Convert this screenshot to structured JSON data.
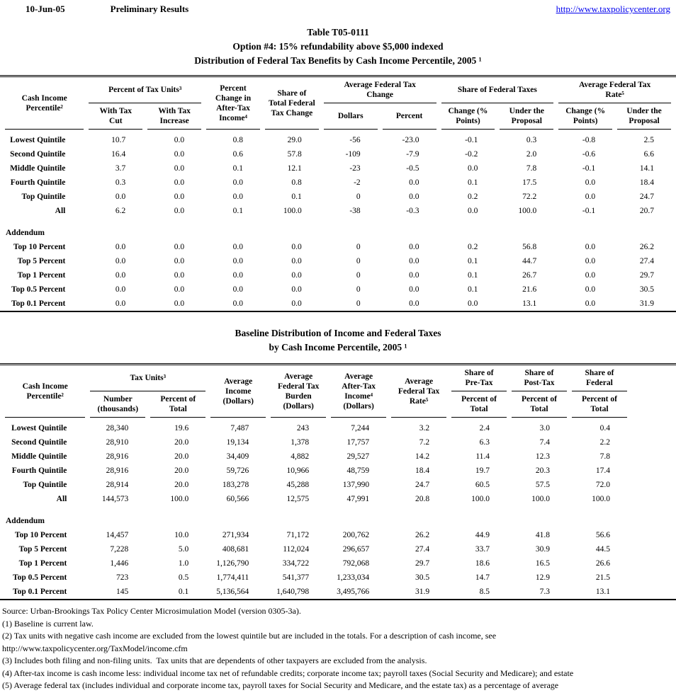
{
  "page_header": {
    "date": "10-Jun-05",
    "status": "Preliminary Results",
    "link": "http://www.taxpolicycenter.org",
    "link_color": "#0000EE"
  },
  "table1": {
    "title": [
      "Table T05-0111",
      "Option #4: 15% refundability above $5,000 indexed",
      "Distribution of Federal Tax Benefits by Cash Income Percentile, 2005 ¹"
    ],
    "headers": {
      "stub": "Cash Income\nPercentile²",
      "group_tax_units": "Percent of Tax Units³",
      "pct_change": "Percent\nChange in\nAfter-Tax\nIncome⁴",
      "share_total": "Share of\nTotal Federal\nTax Change",
      "group_avg_change": "Average Federal Tax\nChange",
      "group_share_taxes": "Share of Federal Taxes",
      "group_avg_rate": "Average Federal Tax\nRate⁵",
      "sub": [
        "With Tax\nCut",
        "With Tax\nIncrease",
        "Dollars",
        "Percent",
        "Change (%\nPoints)",
        "Under the\nProposal",
        "Change (%\nPoints)",
        "Under the\nProposal"
      ]
    },
    "rows": [
      {
        "label": "Lowest Quintile",
        "values": [
          "10.7",
          "0.0",
          "0.8",
          "29.0",
          "-56",
          "-23.0",
          "-0.1",
          "0.3",
          "-0.8",
          "2.5"
        ]
      },
      {
        "label": "Second Quintile",
        "values": [
          "16.4",
          "0.0",
          "0.6",
          "57.8",
          "-109",
          "-7.9",
          "-0.2",
          "2.0",
          "-0.6",
          "6.6"
        ]
      },
      {
        "label": "Middle Quintile",
        "values": [
          "3.7",
          "0.0",
          "0.1",
          "12.1",
          "-23",
          "-0.5",
          "0.0",
          "7.8",
          "-0.1",
          "14.1"
        ]
      },
      {
        "label": "Fourth Quintile",
        "values": [
          "0.3",
          "0.0",
          "0.0",
          "0.8",
          "-2",
          "0.0",
          "0.1",
          "17.5",
          "0.0",
          "18.4"
        ]
      },
      {
        "label": "Top Quintile",
        "values": [
          "0.0",
          "0.0",
          "0.0",
          "0.1",
          "0",
          "0.0",
          "0.2",
          "72.2",
          "0.0",
          "24.7"
        ]
      },
      {
        "label": "All",
        "values": [
          "6.2",
          "0.0",
          "0.1",
          "100.0",
          "-38",
          "-0.3",
          "0.0",
          "100.0",
          "-0.1",
          "20.7"
        ]
      },
      {
        "spacer": true
      },
      {
        "label": "Addendum",
        "section": true
      },
      {
        "label": "Top 10 Percent",
        "values": [
          "0.0",
          "0.0",
          "0.0",
          "0.0",
          "0",
          "0.0",
          "0.2",
          "56.8",
          "0.0",
          "26.2"
        ]
      },
      {
        "label": "Top 5 Percent",
        "values": [
          "0.0",
          "0.0",
          "0.0",
          "0.0",
          "0",
          "0.0",
          "0.1",
          "44.7",
          "0.0",
          "27.4"
        ]
      },
      {
        "label": "Top 1 Percent",
        "values": [
          "0.0",
          "0.0",
          "0.0",
          "0.0",
          "0",
          "0.0",
          "0.1",
          "26.7",
          "0.0",
          "29.7"
        ]
      },
      {
        "label": "Top 0.5 Percent",
        "values": [
          "0.0",
          "0.0",
          "0.0",
          "0.0",
          "0",
          "0.0",
          "0.1",
          "21.6",
          "0.0",
          "30.5"
        ]
      },
      {
        "label": "Top 0.1 Percent",
        "values": [
          "0.0",
          "0.0",
          "0.0",
          "0.0",
          "0",
          "0.0",
          "0.0",
          "13.1",
          "0.0",
          "31.9"
        ]
      }
    ]
  },
  "table2": {
    "title": [
      "Baseline Distribution of Income and Federal Taxes",
      "by Cash Income Percentile, 2005 ¹"
    ],
    "headers": {
      "stub": "Cash Income\nPercentile²",
      "group_tax_units": "Tax Units³",
      "avg_income": "Average\nIncome\n(Dollars)",
      "avg_burden": "Average\nFederal Tax\nBurden\n(Dollars)",
      "avg_after_tax": "Average\nAfter-Tax\nIncome⁴\n(Dollars)",
      "avg_rate": "Average\nFederal Tax\nRate⁵",
      "share_pretax": "Share of\nPre-Tax",
      "share_posttax": "Share of\nPost-Tax",
      "share_federal": "Share of\nFederal",
      "sub": [
        "Number\n(thousands)",
        "Percent of\nTotal",
        "Percent of\nTotal",
        "Percent of\nTotal",
        "Percent of\nTotal"
      ]
    },
    "rows": [
      {
        "label": "Lowest Quintile",
        "values": [
          "28,340",
          "19.6",
          "7,487",
          "243",
          "7,244",
          "3.2",
          "2.4",
          "3.0",
          "0.4"
        ]
      },
      {
        "label": "Second Quintile",
        "values": [
          "28,910",
          "20.0",
          "19,134",
          "1,378",
          "17,757",
          "7.2",
          "6.3",
          "7.4",
          "2.2"
        ]
      },
      {
        "label": "Middle Quintile",
        "values": [
          "28,916",
          "20.0",
          "34,409",
          "4,882",
          "29,527",
          "14.2",
          "11.4",
          "12.3",
          "7.8"
        ]
      },
      {
        "label": "Fourth Quintile",
        "values": [
          "28,916",
          "20.0",
          "59,726",
          "10,966",
          "48,759",
          "18.4",
          "19.7",
          "20.3",
          "17.4"
        ]
      },
      {
        "label": "Top Quintile",
        "values": [
          "28,914",
          "20.0",
          "183,278",
          "45,288",
          "137,990",
          "24.7",
          "60.5",
          "57.5",
          "72.0"
        ]
      },
      {
        "label": "All",
        "values": [
          "144,573",
          "100.0",
          "60,566",
          "12,575",
          "47,991",
          "20.8",
          "100.0",
          "100.0",
          "100.0"
        ]
      },
      {
        "spacer": true
      },
      {
        "label": "Addendum",
        "section": true
      },
      {
        "label": "Top 10 Percent",
        "values": [
          "14,457",
          "10.0",
          "271,934",
          "71,172",
          "200,762",
          "26.2",
          "44.9",
          "41.8",
          "56.6"
        ]
      },
      {
        "label": "Top 5 Percent",
        "values": [
          "7,228",
          "5.0",
          "408,681",
          "112,024",
          "296,657",
          "27.4",
          "33.7",
          "30.9",
          "44.5"
        ]
      },
      {
        "label": "Top 1 Percent",
        "values": [
          "1,446",
          "1.0",
          "1,126,790",
          "334,722",
          "792,068",
          "29.7",
          "18.6",
          "16.5",
          "26.6"
        ]
      },
      {
        "label": "Top 0.5 Percent",
        "values": [
          "723",
          "0.5",
          "1,774,411",
          "541,377",
          "1,233,034",
          "30.5",
          "14.7",
          "12.9",
          "21.5"
        ]
      },
      {
        "label": "Top 0.1 Percent",
        "values": [
          "145",
          "0.1",
          "5,136,564",
          "1,640,798",
          "3,495,766",
          "31.9",
          "8.5",
          "7.3",
          "13.1"
        ]
      }
    ]
  },
  "footnotes": [
    "Source: Urban-Brookings Tax Policy Center Microsimulation Model (version 0305-3a).",
    "(1) Baseline is current law.",
    "(2) Tax units with negative cash income are excluded from the lowest quintile but are included in the totals. For a description of cash income, see",
    "http://www.taxpolicycenter.org/TaxModel/income.cfm",
    "(3) Includes both filing and non-filing units.  Tax units that are dependents of other taxpayers are excluded from the analysis.",
    "(4) After-tax income is cash income less: individual income tax net of refundable credits; corporate income tax; payroll taxes (Social Security and Medicare); and estate",
    "(5) Average federal tax (includes individual and corporate income tax, payroll taxes for Social Security and Medicare, and the estate tax) as a percentage of average"
  ]
}
